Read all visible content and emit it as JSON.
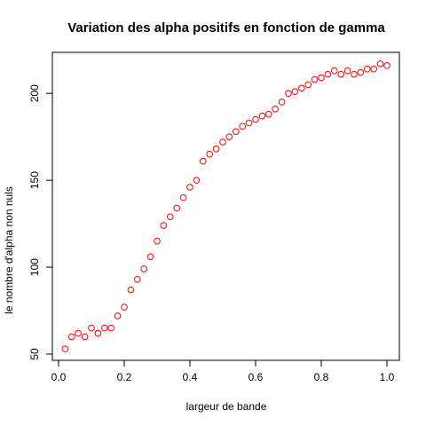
{
  "chart_data": {
    "type": "scatter",
    "title": "Variation des alpha positifs en fonction de gamma",
    "xlabel": "largeur de bande",
    "ylabel": "le nombre d'alpha non nuls",
    "xlim": [
      0.0,
      1.0
    ],
    "ylim": [
      50,
      220
    ],
    "xticks": [
      "0.0",
      "0.2",
      "0.4",
      "0.6",
      "0.8",
      "1.0"
    ],
    "xtick_values": [
      0.0,
      0.2,
      0.4,
      0.6,
      0.8,
      1.0
    ],
    "yticks": [
      "50",
      "100",
      "150",
      "200"
    ],
    "ytick_values": [
      50,
      100,
      150,
      200
    ],
    "grid": false,
    "marker": "open-circle",
    "point_color": "#ff0000",
    "x": [
      0.02,
      0.04,
      0.06,
      0.08,
      0.1,
      0.12,
      0.14,
      0.16,
      0.18,
      0.2,
      0.22,
      0.24,
      0.26,
      0.28,
      0.3,
      0.32,
      0.34,
      0.36,
      0.38,
      0.4,
      0.42,
      0.44,
      0.46,
      0.48,
      0.5,
      0.52,
      0.54,
      0.56,
      0.58,
      0.6,
      0.62,
      0.64,
      0.66,
      0.68,
      0.7,
      0.72,
      0.74,
      0.76,
      0.78,
      0.8,
      0.82,
      0.84,
      0.86,
      0.88,
      0.9,
      0.92,
      0.94,
      0.96,
      0.98,
      1.0
    ],
    "y": [
      53,
      60,
      62,
      60,
      65,
      62,
      65,
      65,
      72,
      77,
      87,
      93,
      99,
      106,
      115,
      124,
      129,
      134,
      140,
      146,
      150,
      161,
      165,
      168,
      172,
      175,
      178,
      181,
      183,
      185,
      187,
      188,
      191,
      195,
      200,
      201,
      203,
      205,
      208,
      209,
      211,
      213,
      211,
      213,
      211,
      212,
      214,
      214,
      217,
      216
    ]
  }
}
